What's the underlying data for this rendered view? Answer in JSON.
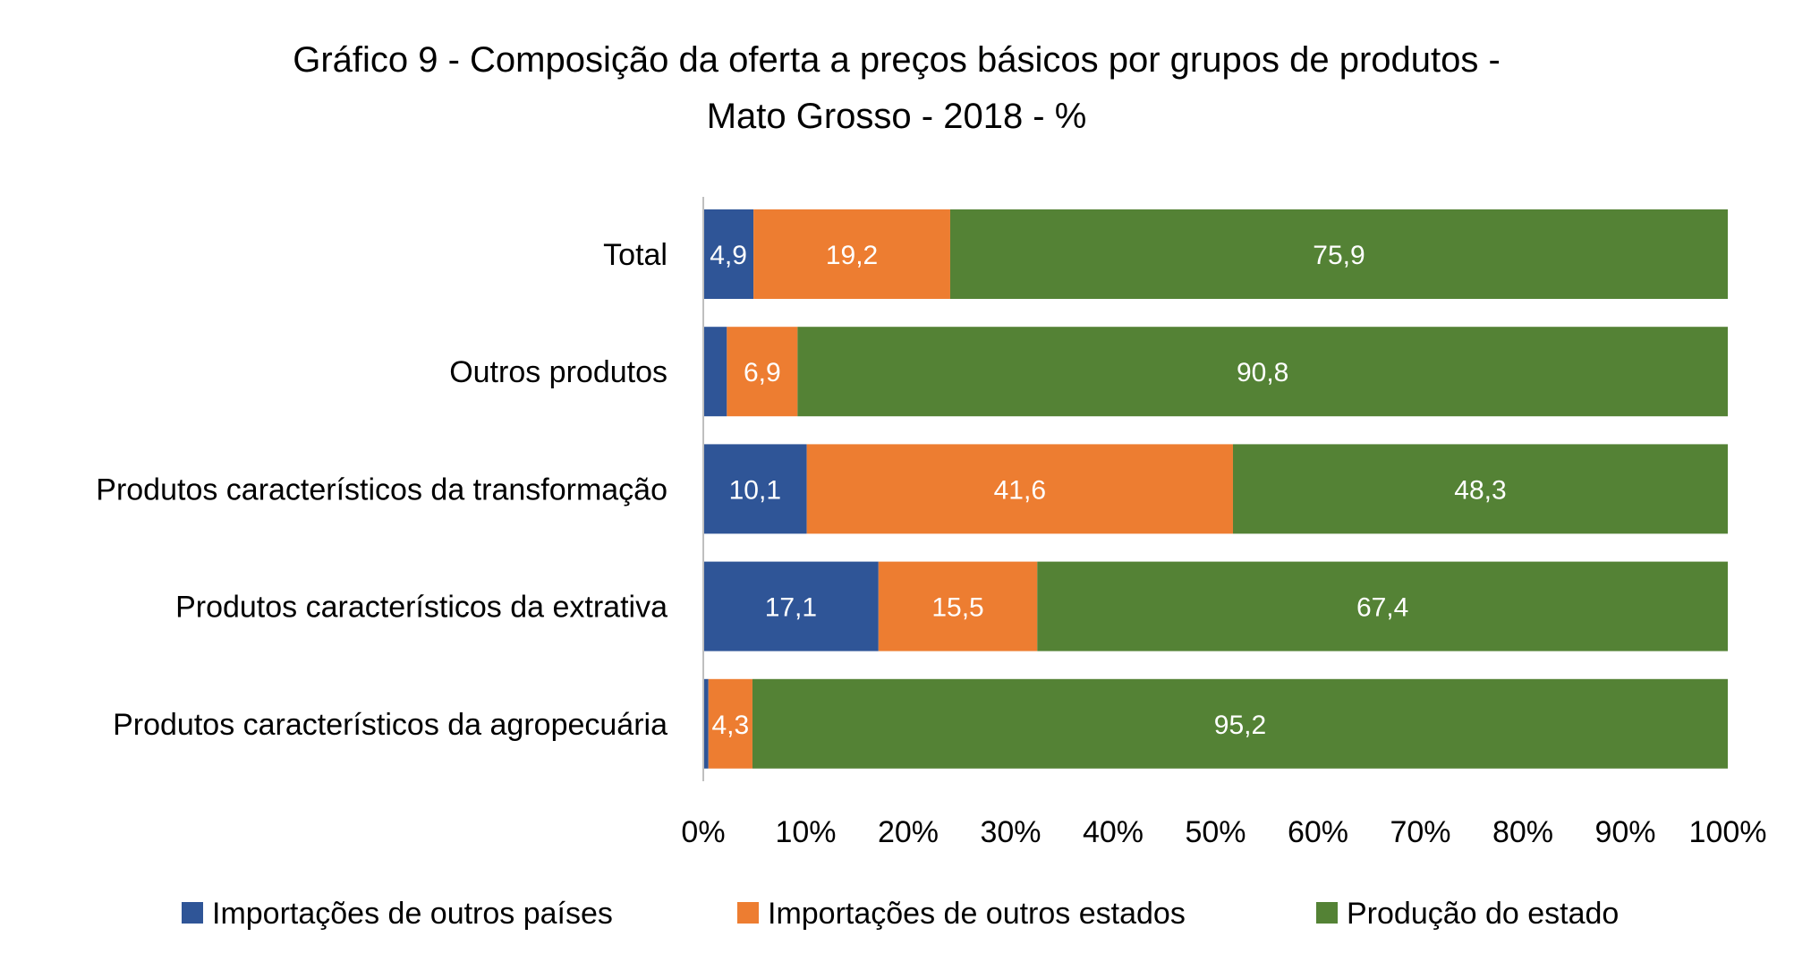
{
  "chart_data": {
    "type": "bar",
    "orientation": "horizontal",
    "stacked": "100%",
    "title": "Gráfico 9 - Composição da oferta a preços básicos por grupos de produtos -",
    "subtitle": "Mato Grosso - 2018 - %",
    "categories": [
      "Total",
      "Outros produtos",
      "Produtos característicos da transformação",
      "Produtos característicos da extrativa",
      "Produtos característicos da agropecuária"
    ],
    "series": [
      {
        "name": "Importações de outros países",
        "color": "#2F5597",
        "values": [
          4.9,
          2.3,
          10.1,
          17.1,
          0.5
        ],
        "labels": [
          "4,9",
          "",
          "10,1",
          "17,1",
          ""
        ]
      },
      {
        "name": "Importações de outros estados",
        "color": "#ED7D31",
        "values": [
          19.2,
          6.9,
          41.6,
          15.5,
          4.3
        ],
        "labels": [
          "19,2",
          "6,9",
          "41,6",
          "15,5",
          "4,3"
        ]
      },
      {
        "name": "Produção do estado",
        "color": "#548235",
        "values": [
          75.9,
          90.8,
          48.3,
          67.4,
          95.2
        ],
        "labels": [
          "75,9",
          "90,8",
          "48,3",
          "67,4",
          "95,2"
        ]
      }
    ],
    "xticks": [
      "0%",
      "10%",
      "20%",
      "30%",
      "40%",
      "50%",
      "60%",
      "70%",
      "80%",
      "90%",
      "100%"
    ],
    "xlim": [
      0,
      100
    ],
    "xlabel": "",
    "ylabel": "",
    "grid": false,
    "legend": "bottom"
  }
}
